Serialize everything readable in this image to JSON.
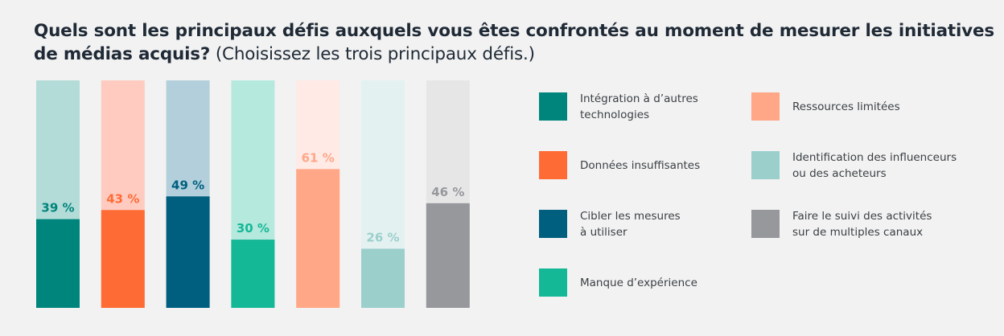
{
  "title": {
    "question": "Quels sont les principaux défis auxquels vous êtes confrontés au moment de mesurer les initiatives de médias acquis?",
    "instruction": "(Choisissez les trois principaux défis.)"
  },
  "chart_data": {
    "type": "bar",
    "stacked_to_100": true,
    "ylim": [
      0,
      100
    ],
    "grid": false,
    "legend_position": "right",
    "categories": [
      "Intégration à d’autres\ntechnologies",
      "Données insuffisantes",
      "Cibler les mesures\nà utiliser",
      "Manque d’expérience",
      "Ressources limitées",
      "Identification des influenceurs\nou des acheteurs",
      "Faire le suivi des activités\nsur de multiples canaux"
    ],
    "values": [
      39,
      43,
      49,
      30,
      61,
      26,
      46
    ],
    "data_labels": [
      "39 %",
      "43 %",
      "49 %",
      "30 %",
      "61 %",
      "26 %",
      "46 %"
    ],
    "colors": [
      "#00857c",
      "#ff6b35",
      "#005f7f",
      "#14b896",
      "#ffa787",
      "#9bcfcc",
      "#97989c"
    ],
    "background_colors": [
      "#b3dcd8",
      "#ffcbc0",
      "#b2cfdb",
      "#b6e9de",
      "#ffeae6",
      "#e4f1f1",
      "#e6e6e7"
    ],
    "label_colors": [
      "#00857c",
      "#ff6b35",
      "#005f7f",
      "#14b896",
      "#ffa787",
      "#9bcfcc",
      "#97989c"
    ]
  }
}
